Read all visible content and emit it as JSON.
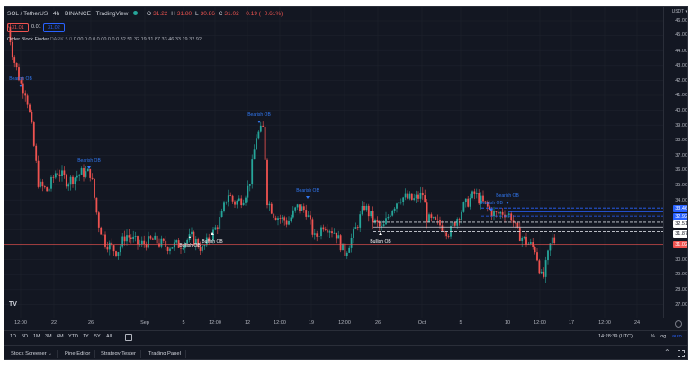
{
  "header": {
    "symbol": "SOL / TetherUS",
    "interval": "4h",
    "exchange": "BINANCE",
    "source": "TradingView",
    "status_dot_color": "#26a69a",
    "ohlc": {
      "o_label": "O",
      "o": "31.22",
      "h_label": "H",
      "h": "31.80",
      "l_label": "L",
      "l": "30.86",
      "c_label": "C",
      "c": "31.02",
      "change": "−0.19 (−0.61%)"
    },
    "sell_price": "31.01",
    "spread": "0.01",
    "buy_price": "31.02"
  },
  "indicator": {
    "name": "Order Block Finder",
    "params": "DARK 5 0",
    "values": "0.00  0  0  0  0.00  0  0  0  32.51  32.19  31.87  33.46  33.19  32.92"
  },
  "price_axis": {
    "currency": "USDT ▾",
    "labels": [
      "46.00",
      "45.00",
      "44.00",
      "43.00",
      "42.00",
      "41.00",
      "40.00",
      "39.00",
      "38.00",
      "37.00",
      "36.00",
      "35.00",
      "34.00",
      "30.00",
      "29.00",
      "28.00",
      "27.00"
    ],
    "tags": [
      {
        "value": "33.46",
        "bg": "#2962ff",
        "color": "#ffffff"
      },
      {
        "value": "32.92",
        "bg": "#2962ff",
        "color": "#ffffff"
      },
      {
        "value": "32.51",
        "bg": "#ffffff",
        "color": "#131722"
      },
      {
        "value": "31.87",
        "bg": "#ffffff",
        "color": "#131722"
      },
      {
        "value": "31.02",
        "bg": "#ef5350",
        "color": "#ffffff"
      }
    ]
  },
  "annotations": {
    "bearish": "Bearish OB",
    "bullish": "Bullish OB"
  },
  "time_axis": [
    "12:00",
    "22",
    "26",
    "Sep",
    "5",
    "12:00",
    "12",
    "12:00",
    "19",
    "12:00",
    "26",
    "Oct",
    "5",
    "10",
    "12:00",
    "17",
    "12:00",
    "24"
  ],
  "range_buttons": [
    "1D",
    "5D",
    "1M",
    "3M",
    "6M",
    "YTD",
    "1Y",
    "5Y",
    "All"
  ],
  "clock": "14:28:39 (UTC)",
  "scale_options": {
    "percent": "%",
    "log": "log",
    "auto": "auto"
  },
  "bottom_tabs": [
    "Stock Screener",
    "Pine Editor",
    "Strategy Tester",
    "Trading Panel"
  ],
  "colors": {
    "up": "#26a69a",
    "down": "#ef5350",
    "bg": "#131722",
    "grid": "#1e222d",
    "accent": "#2962ff"
  },
  "logo": "TV"
}
